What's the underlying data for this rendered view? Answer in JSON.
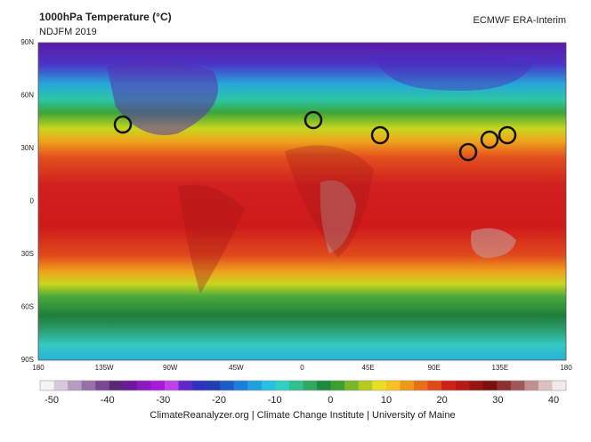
{
  "header": {
    "title": "1000hPa Temperature (°C)",
    "subtitle": "NDJFM 2019",
    "source": "ECMWF ERA-Interim"
  },
  "map": {
    "lat_labels": [
      "90N",
      "60N",
      "30N",
      "0",
      "30S",
      "60S",
      "90S"
    ],
    "lon_labels": [
      "180",
      "135W",
      "90W",
      "45W",
      "0",
      "45E",
      "90E",
      "135E",
      "180"
    ]
  },
  "colorbar": {
    "ticks": [
      -50,
      -40,
      -30,
      -20,
      -10,
      0,
      10,
      20,
      30,
      40
    ]
  },
  "footer": "ClimateReanalyzer.org | Climate Change Institute | University of Maine"
}
